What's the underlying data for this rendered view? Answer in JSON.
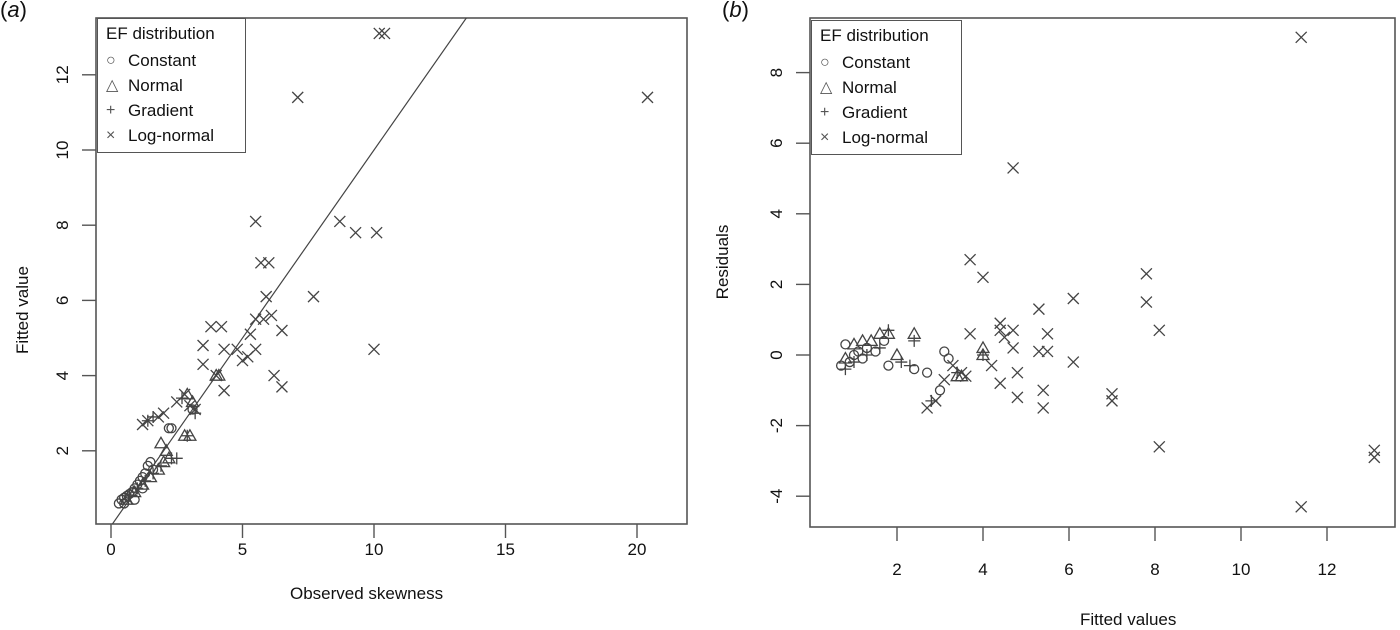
{
  "figure": {
    "panels": [
      {
        "id": "a",
        "label_letter": "a",
        "label_open": "(",
        "label_close": ")"
      },
      {
        "id": "b",
        "label_letter": "b",
        "label_open": "(",
        "label_close": ")"
      }
    ]
  },
  "legend": {
    "title": "EF distribution",
    "items": [
      {
        "label": "Constant",
        "symbol": "○",
        "icon": "circle-icon"
      },
      {
        "label": "Normal",
        "symbol": "△",
        "icon": "triangle-icon"
      },
      {
        "label": "Gradient",
        "symbol": "+",
        "icon": "plus-icon"
      },
      {
        "label": "Log-normal",
        "symbol": "×",
        "icon": "cross-icon"
      }
    ]
  },
  "chart_data": [
    {
      "panel": "a",
      "type": "scatter",
      "title": "",
      "xlabel": "Observed skewness",
      "ylabel": "Fitted value",
      "xlim": [
        -0.6,
        21.5
      ],
      "ylim": [
        0,
        13.4
      ],
      "xticks": [
        0,
        5,
        10,
        15,
        20
      ],
      "yticks": [
        2,
        4,
        6,
        8,
        10,
        12
      ],
      "grid": false,
      "legend_position": "top-left",
      "reference_line": {
        "type": "identity",
        "x": [
          0,
          21
        ],
        "y": [
          0,
          21
        ]
      },
      "series": [
        {
          "name": "Constant",
          "marker": "circle",
          "points": [
            [
              0.3,
              0.6
            ],
            [
              0.4,
              0.7
            ],
            [
              0.5,
              0.75
            ],
            [
              0.6,
              0.8
            ],
            [
              0.7,
              0.85
            ],
            [
              0.8,
              0.9
            ],
            [
              0.9,
              1.0
            ],
            [
              1.0,
              1.1
            ],
            [
              1.1,
              1.2
            ],
            [
              1.2,
              1.3
            ],
            [
              1.3,
              1.4
            ],
            [
              1.4,
              1.6
            ],
            [
              1.5,
              1.7
            ],
            [
              1.6,
              1.5
            ],
            [
              2.2,
              2.6
            ],
            [
              2.3,
              2.6
            ],
            [
              3.1,
              3.1
            ],
            [
              0.5,
              0.6
            ],
            [
              0.9,
              0.7
            ],
            [
              1.2,
              1.0
            ]
          ]
        },
        {
          "name": "Normal",
          "marker": "triangle",
          "points": [
            [
              0.6,
              0.7
            ],
            [
              0.9,
              0.9
            ],
            [
              1.2,
              1.1
            ],
            [
              1.5,
              1.3
            ],
            [
              1.8,
              1.5
            ],
            [
              2.0,
              1.7
            ],
            [
              2.1,
              2.0
            ],
            [
              2.2,
              1.8
            ],
            [
              2.8,
              2.4
            ],
            [
              3.0,
              2.4
            ],
            [
              2.9,
              3.5
            ],
            [
              3.1,
              3.3
            ],
            [
              4.0,
              4.0
            ],
            [
              4.1,
              4.0
            ],
            [
              1.9,
              2.2
            ]
          ]
        },
        {
          "name": "Gradient",
          "marker": "plus",
          "points": [
            [
              0.7,
              0.8
            ],
            [
              1.0,
              1.0
            ],
            [
              1.3,
              1.2
            ],
            [
              1.6,
              1.4
            ],
            [
              1.9,
              1.6
            ],
            [
              2.3,
              1.8
            ],
            [
              2.5,
              1.8
            ],
            [
              2.9,
              2.4
            ],
            [
              3.2,
              3.0
            ],
            [
              2.7,
              3.4
            ],
            [
              1.4,
              2.8
            ],
            [
              1.6,
              2.9
            ]
          ]
        },
        {
          "name": "Log-normal",
          "marker": "cross",
          "points": [
            [
              1.2,
              2.7
            ],
            [
              1.4,
              2.8
            ],
            [
              1.8,
              2.9
            ],
            [
              2.0,
              3.0
            ],
            [
              2.5,
              3.3
            ],
            [
              2.8,
              3.5
            ],
            [
              3.0,
              3.2
            ],
            [
              3.2,
              3.1
            ],
            [
              3.5,
              4.3
            ],
            [
              3.5,
              4.8
            ],
            [
              3.8,
              5.3
            ],
            [
              4.2,
              5.3
            ],
            [
              4.0,
              4.0
            ],
            [
              4.3,
              3.6
            ],
            [
              4.3,
              4.7
            ],
            [
              4.8,
              4.7
            ],
            [
              5.0,
              4.4
            ],
            [
              5.2,
              4.5
            ],
            [
              5.5,
              4.7
            ],
            [
              5.5,
              5.5
            ],
            [
              5.3,
              5.1
            ],
            [
              5.8,
              5.5
            ],
            [
              5.9,
              6.1
            ],
            [
              6.1,
              5.6
            ],
            [
              6.2,
              4.0
            ],
            [
              6.5,
              3.7
            ],
            [
              6.5,
              5.2
            ],
            [
              5.5,
              8.1
            ],
            [
              5.7,
              7.0
            ],
            [
              6.0,
              7.0
            ],
            [
              7.1,
              11.4
            ],
            [
              7.7,
              6.1
            ],
            [
              8.7,
              8.1
            ],
            [
              9.3,
              7.8
            ],
            [
              10.1,
              7.8
            ],
            [
              10.0,
              4.7
            ],
            [
              10.2,
              13.1
            ],
            [
              10.4,
              13.1
            ],
            [
              20.4,
              11.4
            ]
          ]
        }
      ]
    },
    {
      "panel": "b",
      "type": "scatter",
      "title": "",
      "xlabel": "Fitted values",
      "ylabel": "Residuals",
      "xlim": [
        0,
        13.6
      ],
      "ylim": [
        -4.9,
        9.4
      ],
      "xticks": [
        2,
        4,
        6,
        8,
        10,
        12
      ],
      "yticks": [
        -4,
        -2,
        0,
        2,
        4,
        6,
        8
      ],
      "grid": false,
      "legend_position": "top-left",
      "series": [
        {
          "name": "Constant",
          "marker": "circle",
          "points": [
            [
              0.7,
              -0.3
            ],
            [
              0.8,
              0.3
            ],
            [
              0.9,
              -0.2
            ],
            [
              1.0,
              0.0
            ],
            [
              1.1,
              0.1
            ],
            [
              1.2,
              -0.1
            ],
            [
              1.3,
              0.2
            ],
            [
              1.5,
              0.1
            ],
            [
              1.7,
              0.4
            ],
            [
              1.8,
              -0.3
            ],
            [
              2.4,
              -0.4
            ],
            [
              2.7,
              -0.5
            ],
            [
              3.1,
              0.1
            ],
            [
              3.2,
              -0.1
            ],
            [
              3.0,
              -1.0
            ]
          ]
        },
        {
          "name": "Normal",
          "marker": "triangle",
          "points": [
            [
              0.8,
              -0.1
            ],
            [
              1.0,
              0.3
            ],
            [
              1.2,
              0.4
            ],
            [
              1.4,
              0.4
            ],
            [
              1.6,
              0.6
            ],
            [
              1.8,
              0.6
            ],
            [
              2.0,
              0.0
            ],
            [
              2.4,
              0.6
            ],
            [
              3.4,
              -0.6
            ],
            [
              3.5,
              -0.6
            ],
            [
              4.0,
              0.2
            ],
            [
              4.0,
              0.0
            ]
          ]
        },
        {
          "name": "Gradient",
          "marker": "plus",
          "points": [
            [
              0.8,
              -0.4
            ],
            [
              1.0,
              -0.2
            ],
            [
              1.3,
              0.0
            ],
            [
              1.6,
              0.2
            ],
            [
              1.8,
              0.7
            ],
            [
              2.1,
              -0.2
            ],
            [
              2.3,
              -0.3
            ],
            [
              2.4,
              0.4
            ],
            [
              3.4,
              -0.5
            ],
            [
              4.0,
              0.0
            ],
            [
              2.8,
              -1.3
            ]
          ]
        },
        {
          "name": "Log-normal",
          "marker": "cross",
          "points": [
            [
              2.7,
              -1.5
            ],
            [
              2.9,
              -1.3
            ],
            [
              3.1,
              -0.7
            ],
            [
              3.3,
              -0.3
            ],
            [
              3.5,
              -0.5
            ],
            [
              3.6,
              -0.6
            ],
            [
              3.7,
              0.6
            ],
            [
              3.7,
              2.7
            ],
            [
              4.0,
              2.2
            ],
            [
              4.2,
              -0.3
            ],
            [
              4.4,
              0.7
            ],
            [
              4.4,
              0.9
            ],
            [
              4.4,
              -0.8
            ],
            [
              4.5,
              0.5
            ],
            [
              4.7,
              0.7
            ],
            [
              4.7,
              0.2
            ],
            [
              4.8,
              -0.5
            ],
            [
              4.8,
              -1.2
            ],
            [
              4.7,
              5.3
            ],
            [
              5.3,
              1.3
            ],
            [
              5.3,
              0.1
            ],
            [
              5.4,
              -1.0
            ],
            [
              5.4,
              -1.5
            ],
            [
              5.5,
              0.6
            ],
            [
              5.5,
              0.1
            ],
            [
              6.1,
              1.6
            ],
            [
              6.1,
              -0.2
            ],
            [
              7.0,
              -1.1
            ],
            [
              7.0,
              -1.3
            ],
            [
              7.8,
              2.3
            ],
            [
              7.8,
              1.5
            ],
            [
              8.1,
              0.7
            ],
            [
              8.1,
              -2.6
            ],
            [
              11.4,
              9.0
            ],
            [
              11.4,
              -4.3
            ],
            [
              13.1,
              -2.7
            ],
            [
              13.1,
              -2.9
            ]
          ]
        }
      ]
    }
  ]
}
